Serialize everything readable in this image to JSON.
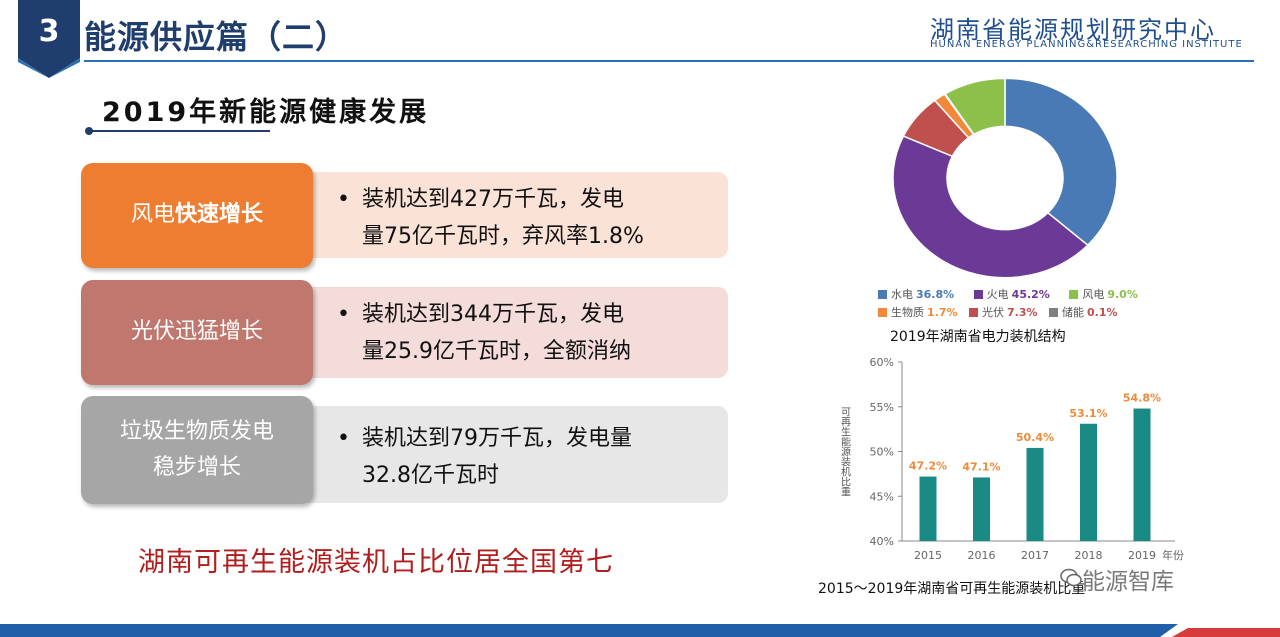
{
  "header": {
    "section_number": "3",
    "title": "能源供应篇（二）",
    "org_name_cn": "湖南省能源规划研究中心",
    "org_name_en": "HUNAN ENERGY PLANNING&RESEARCHING INSTITUTE"
  },
  "subtitle": "2019年新能源健康发展",
  "rows": [
    {
      "label_prefix": "风电",
      "label_emph": "快速增长",
      "label_line2": "",
      "bullet": "•",
      "line1": "装机达到427万千瓦，发电",
      "line2": "量75亿千瓦时，弃风率1.8%",
      "color": "#ed7d31",
      "box_color": "#fbe2d6"
    },
    {
      "label_prefix": "光伏迅猛增长",
      "label_emph": "",
      "label_line2": "",
      "bullet": "•",
      "line1": "装机达到344万千瓦，发电",
      "line2": "量25.9亿千瓦时，全额消纳",
      "color": "#c0786e",
      "box_color": "#f3dcd9"
    },
    {
      "label_prefix": "垃圾生物质发电",
      "label_emph": "",
      "label_line2": "稳步增长",
      "bullet": "•",
      "line1": "装机达到79万千瓦，发电量",
      "line2": "32.8亿千瓦时",
      "color": "#a6a6a6",
      "box_color": "#e7e7e7"
    }
  ],
  "conclusion": "湖南可再生能源装机占比位居全国第七",
  "donut": {
    "caption": "2019年湖南省电力装机结构",
    "legend": [
      {
        "name": "水电",
        "pct": "36.8%",
        "color": "#4a7ab5"
      },
      {
        "name": "火电",
        "pct": "45.2%",
        "color": "#6a3a96"
      },
      {
        "name": "风电",
        "pct": "9.0%",
        "color": "#8dc04a"
      },
      {
        "name": "生物质",
        "pct": "1.7%",
        "color": "#f08a3a"
      },
      {
        "name": "光伏",
        "pct": "7.3%",
        "color": "#c0504d"
      },
      {
        "name": "储能",
        "pct": "0.1%",
        "color": "#7f7f7f"
      }
    ]
  },
  "chart_data": {
    "type": "bar",
    "categories": [
      "2015",
      "2016",
      "2017",
      "2018",
      "2019"
    ],
    "values": [
      47.2,
      47.1,
      50.4,
      53.1,
      54.8
    ],
    "data_labels": [
      "47.2%",
      "47.1%",
      "50.4%",
      "53.1%",
      "54.8%"
    ],
    "ylabel": "可再生能源装机比重",
    "xlabel": "年份",
    "ylim": [
      40,
      60
    ],
    "yticks": [
      "40%",
      "45%",
      "50%",
      "55%",
      "60%"
    ],
    "bar_color": "#1a8a84",
    "label_color": "#f08a3a",
    "caption": "2015～2019年湖南省可再生能源装机比重"
  },
  "pie_data": {
    "type": "pie",
    "categories": [
      "水电",
      "火电",
      "光伏",
      "生物质",
      "储能",
      "风电"
    ],
    "values": [
      36.8,
      45.2,
      7.3,
      1.7,
      0.1,
      9.0
    ],
    "note": "donut rendered clockwise from top"
  },
  "watermark": "能源智库"
}
